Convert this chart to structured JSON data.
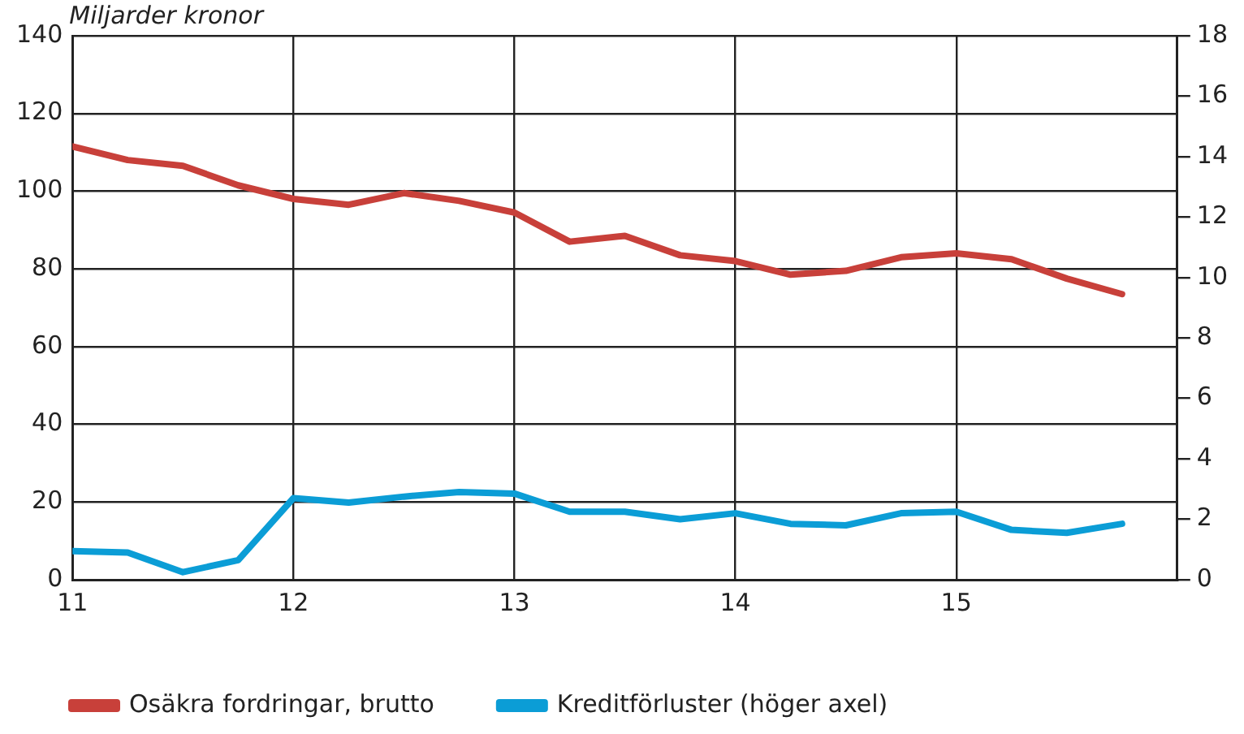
{
  "chart_data": {
    "type": "line",
    "ylabel": "Miljarder kronor",
    "x": [
      11,
      11.25,
      11.5,
      11.75,
      12,
      12.25,
      12.5,
      12.75,
      13,
      13.25,
      13.5,
      13.75,
      14,
      14.25,
      14.5,
      14.75,
      15,
      15.25,
      15.5,
      15.75
    ],
    "xlim": [
      11,
      16
    ],
    "xticks": [
      11,
      12,
      13,
      14,
      15
    ],
    "ylim": [
      0,
      140
    ],
    "yticks": [
      0,
      20,
      40,
      60,
      80,
      100,
      120,
      140
    ],
    "y2lim": [
      0,
      18
    ],
    "y2ticks": [
      0,
      2,
      4,
      6,
      8,
      10,
      12,
      14,
      16,
      18
    ],
    "grid": true,
    "legend": "bottom",
    "marker": "none",
    "line_style": "solid",
    "series": [
      {
        "name": "Osäkra fordringar, brutto",
        "color": "#c8403a",
        "values": [
          111.5,
          108,
          106.5,
          101.5,
          98,
          96.5,
          99.5,
          97.5,
          94.5,
          87,
          88.5,
          83.5,
          82,
          78.5,
          79.5,
          83,
          84,
          82.5,
          77.5,
          73.5
        ]
      },
      {
        "name": "Kreditförluster (höger axel)",
        "color": "#0b9dd6",
        "axis": "y2",
        "values": [
          0.95,
          0.9,
          0.25,
          0.65,
          2.7,
          2.55,
          2.75,
          2.9,
          2.85,
          2.25,
          2.25,
          2.0,
          2.2,
          1.85,
          1.8,
          2.2,
          2.25,
          1.65,
          1.55,
          1.85
        ]
      }
    ]
  }
}
